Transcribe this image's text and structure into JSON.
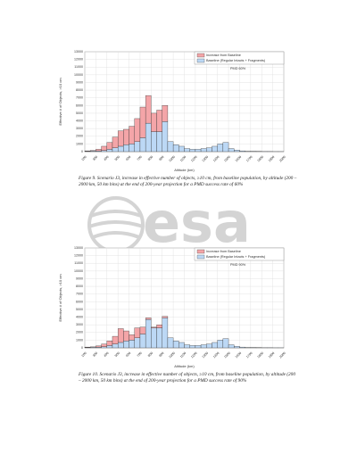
{
  "watermark": "esa",
  "chart_data": [
    {
      "type": "histogram",
      "legend": "upper right",
      "grid": true,
      "annotation": "PMD 60%",
      "xlabel": "Altitude (km)",
      "ylabel": "Effective # of Objects, >10 cm",
      "bins": [
        200,
        250,
        300,
        350,
        400,
        450,
        500,
        550,
        600,
        650,
        700,
        750,
        800,
        850,
        900,
        950,
        1000,
        1050,
        1100,
        1150,
        1200,
        1250,
        1300,
        1350,
        1400,
        1450,
        1500,
        1550,
        1600,
        1650,
        1700,
        1750,
        1800,
        1850,
        1900,
        1950,
        2000
      ],
      "xlim": [
        200,
        2000
      ],
      "xticks": [
        200,
        300,
        400,
        500,
        600,
        700,
        800,
        900,
        1000,
        1100,
        1200,
        1300,
        1400,
        1500,
        1600,
        1700,
        1800,
        1900,
        2000
      ],
      "ylim": [
        0,
        13000
      ],
      "yticks": [
        0,
        1000,
        2000,
        3000,
        4000,
        5000,
        6000,
        7000,
        8000,
        9000,
        10000,
        11000,
        12000,
        13000
      ],
      "series": [
        {
          "name": "Increase from Baseline",
          "color": "#f4a5a8",
          "values": [
            50,
            70,
            200,
            550,
            900,
            1400,
            2000,
            2000,
            2300,
            3000,
            4000,
            3600,
            2400,
            2800,
            2100,
            0,
            0,
            0,
            0,
            0,
            0,
            0,
            0,
            0,
            0,
            0,
            0,
            0,
            0,
            0,
            0,
            0,
            0,
            0,
            0,
            0
          ]
        },
        {
          "name": "Baseline (Regular Intacts + Fragments)",
          "color": "#bcd8f5",
          "values": [
            50,
            80,
            100,
            150,
            300,
            500,
            700,
            900,
            1000,
            1300,
            1800,
            3700,
            2600,
            2600,
            3900,
            1300,
            900,
            700,
            400,
            300,
            300,
            400,
            500,
            700,
            1000,
            1200,
            400,
            200,
            100,
            50,
            50,
            30,
            20,
            20,
            10,
            10
          ]
        }
      ],
      "caption": "Figure 9. Scenario J3, increase in effective number of objects, ≥10 cm, from baseline population, by altitude (200 – 2000 km, 50 km bins) at the end of 200-year projection for a PMD success rate of 60%"
    },
    {
      "type": "histogram",
      "legend": "upper right",
      "grid": true,
      "annotation": "PMD 90%",
      "xlabel": "Altitude (km)",
      "ylabel": "Effective # of Objects, >10 cm",
      "bins": [
        200,
        250,
        300,
        350,
        400,
        450,
        500,
        550,
        600,
        650,
        700,
        750,
        800,
        850,
        900,
        950,
        1000,
        1050,
        1100,
        1150,
        1200,
        1250,
        1300,
        1350,
        1400,
        1450,
        1500,
        1550,
        1600,
        1650,
        1700,
        1750,
        1800,
        1850,
        1900,
        1950,
        2000
      ],
      "xlim": [
        200,
        2000
      ],
      "xticks": [
        200,
        300,
        400,
        500,
        600,
        700,
        800,
        900,
        1000,
        1100,
        1200,
        1300,
        1400,
        1500,
        1600,
        1700,
        1800,
        1900,
        2000
      ],
      "ylim": [
        0,
        13000
      ],
      "yticks": [
        0,
        1000,
        2000,
        3000,
        4000,
        5000,
        6000,
        7000,
        8000,
        9000,
        10000,
        11000,
        12000,
        13000
      ],
      "series": [
        {
          "name": "Increase from Baseline",
          "color": "#f4a5a8",
          "values": [
            50,
            50,
            150,
            350,
            600,
            1000,
            1800,
            1300,
            700,
            1300,
            900,
            200,
            100,
            400,
            200,
            0,
            0,
            0,
            0,
            0,
            0,
            0,
            0,
            0,
            0,
            0,
            0,
            0,
            0,
            0,
            0,
            0,
            0,
            0,
            0,
            0
          ]
        },
        {
          "name": "Baseline (Regular Intacts + Fragments)",
          "color": "#bcd8f5",
          "values": [
            50,
            80,
            100,
            150,
            300,
            500,
            700,
            900,
            1000,
            1300,
            1800,
            3700,
            2600,
            2600,
            3900,
            1300,
            900,
            700,
            400,
            300,
            300,
            400,
            500,
            700,
            1000,
            1200,
            400,
            200,
            100,
            50,
            50,
            30,
            20,
            20,
            10,
            10
          ]
        }
      ],
      "caption": "Figure 10. Scenario J3, increase in effective number of objects, ≥10 cm, from baseline population, by altitude (200 – 2000 km, 50 km bins) at the end of 200-year projection for a PMD success rate of 90%"
    }
  ]
}
